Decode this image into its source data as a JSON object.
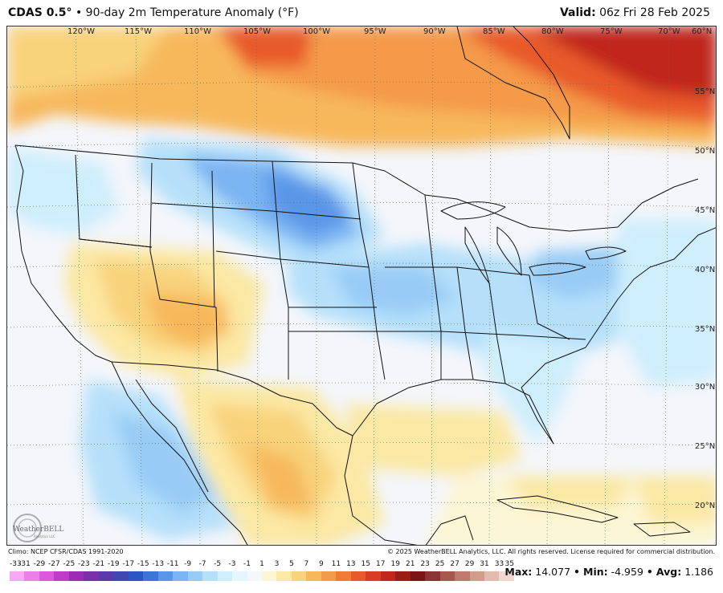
{
  "header": {
    "model": "CDAS 0.5°",
    "separator": "•",
    "product": "90-day 2m Temperature Anomaly (°F)",
    "valid_label": "Valid:",
    "valid_value": "06z Fri 28 Feb 2025"
  },
  "map": {
    "lon_labels": [
      "120°W",
      "115°W",
      "110°W",
      "105°W",
      "100°W",
      "95°W",
      "90°W",
      "85°W",
      "80°W",
      "75°W",
      "70°W",
      "60°N"
    ],
    "lat_labels": [
      "55°N",
      "50°N",
      "45°N",
      "40°N",
      "35°N",
      "30°N",
      "25°N",
      "20°N"
    ],
    "colors": {
      "ocean": "#f4f6fb",
      "land_neutral": "#f2f4fa",
      "border": "#111111"
    }
  },
  "logo": {
    "text": "WeatherBELL",
    "subtext": "Analytics LLC"
  },
  "footer": {
    "climo": "Climo: NCEP CFSR/CDAS 1991-2020",
    "copyright": "© 2025 WeatherBELL Analytics, LLC. All rights reserved. License required for commercial distribution."
  },
  "colorbar": {
    "labels": [
      "-33",
      "-31",
      "-29",
      "-27",
      "-25",
      "-23",
      "-21",
      "-19",
      "-17",
      "-15",
      "-13",
      "-11",
      "-9",
      "-7",
      "-5",
      "-3",
      "-1",
      "1",
      "3",
      "5",
      "7",
      "9",
      "11",
      "13",
      "15",
      "17",
      "19",
      "21",
      "23",
      "25",
      "27",
      "29",
      "31",
      "33",
      "35"
    ],
    "colors": [
      "#f6a8f0",
      "#ec7ee8",
      "#dc58dc",
      "#c03cc8",
      "#9c2cb4",
      "#7a30a8",
      "#5a3aa8",
      "#4046b4",
      "#2c56c4",
      "#3c74d8",
      "#5a96e8",
      "#7ab4f2",
      "#98ccf6",
      "#b6e0fa",
      "#cfeefc",
      "#e4f6fe",
      "#f4f8fc",
      "#fcf6d4",
      "#fbe8a4",
      "#f9d27c",
      "#f7b85c",
      "#f49a48",
      "#f07a38",
      "#e85a2c",
      "#d83c22",
      "#c0281c",
      "#9c1c18",
      "#7a1414",
      "#8c3434",
      "#a4584e",
      "#bc7a6c",
      "#d09c8c",
      "#e2bcae",
      "#f0d8ce"
    ]
  },
  "stats": {
    "max_label": "Max:",
    "max_value": "14.077",
    "min_label": "Min:",
    "min_value": "-4.959",
    "avg_label": "Avg:",
    "avg_value": "1.186",
    "sep": "•"
  }
}
